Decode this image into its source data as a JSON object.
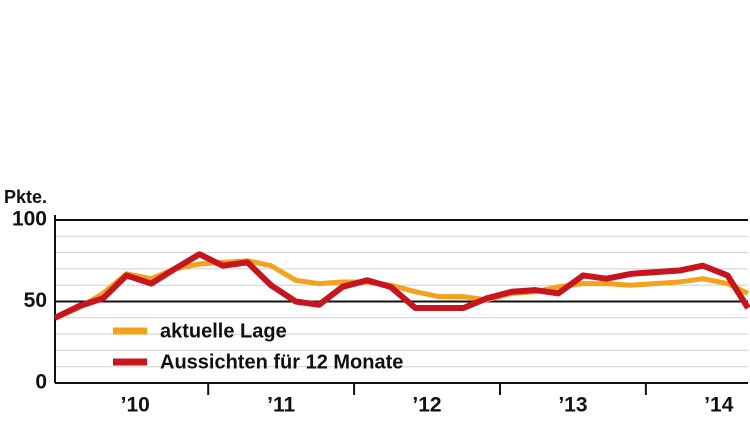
{
  "chart_data": {
    "type": "line",
    "y_label": "Pkte.",
    "x": [
      2009.95,
      2010.11,
      2010.28,
      2010.44,
      2010.61,
      2010.77,
      2010.94,
      2011.1,
      2011.27,
      2011.43,
      2011.6,
      2011.76,
      2011.92,
      2012.09,
      2012.25,
      2012.42,
      2012.58,
      2012.75,
      2012.91,
      2013.08,
      2013.24,
      2013.4,
      2013.57,
      2013.73,
      2013.9,
      2014.06,
      2014.23,
      2014.39,
      2014.56,
      2014.7
    ],
    "series": [
      {
        "name": "aktuelle Lage",
        "color": "#f4a21c",
        "values": [
          40,
          46,
          55,
          67,
          64,
          70,
          73,
          74,
          75,
          72,
          63,
          61,
          62,
          62,
          60,
          56,
          53,
          53,
          51,
          55,
          56,
          59,
          61,
          61,
          60,
          61,
          62,
          64,
          61,
          55
        ]
      },
      {
        "name": "Aussichten für 12 Monate",
        "color": "#c8141e",
        "values": [
          40,
          47,
          52,
          66,
          61,
          70,
          79,
          72,
          74,
          60,
          50,
          48,
          59,
          63,
          59,
          46,
          46,
          46,
          52,
          56,
          57,
          55,
          66,
          64,
          67,
          68,
          69,
          72,
          66,
          46
        ]
      }
    ],
    "xlim": [
      2009.95,
      2014.7
    ],
    "xticks": [
      {
        "value": 2010.5,
        "label": "’10"
      },
      {
        "value": 2011.5,
        "label": "’11"
      },
      {
        "value": 2012.5,
        "label": "’12"
      },
      {
        "value": 2013.5,
        "label": "’13"
      },
      {
        "value": 2014.5,
        "label": "’14"
      }
    ],
    "ylim": [
      0,
      100
    ],
    "yticks": [
      0,
      50,
      100
    ],
    "y_minor_ticks": [
      10,
      20,
      30,
      40,
      60,
      70,
      80,
      90
    ],
    "grid": true
  }
}
